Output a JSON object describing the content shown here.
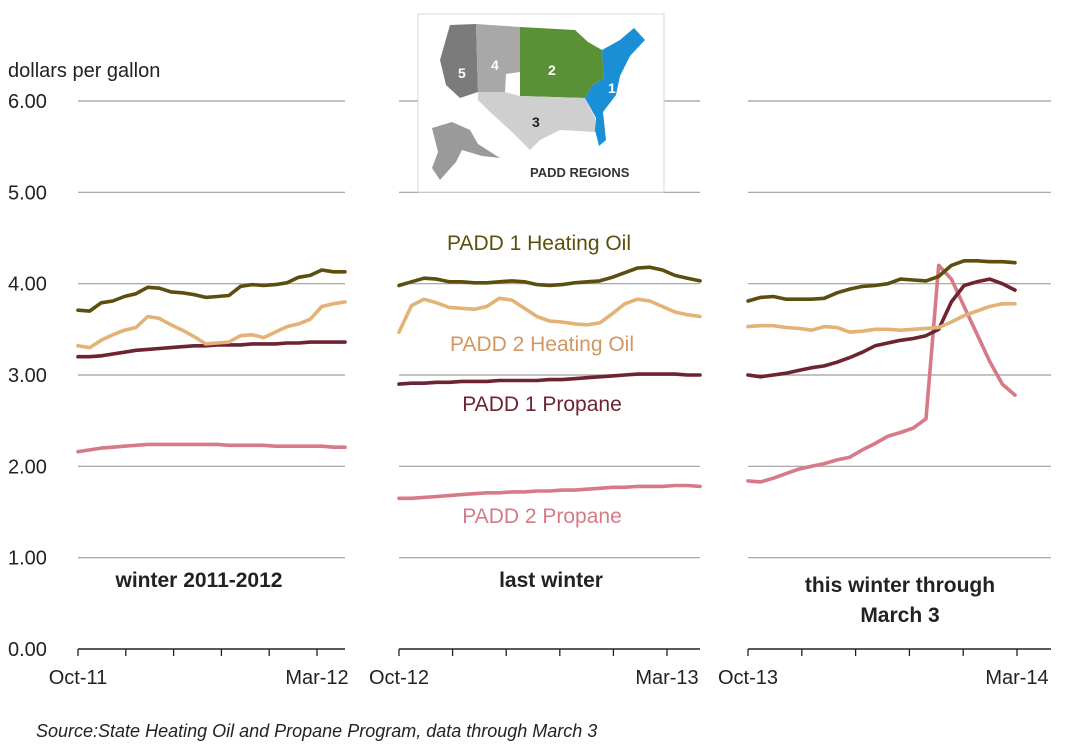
{
  "chart_data": {
    "type": "line",
    "y_unit": "dollars per gallon",
    "ylim": [
      0,
      6
    ],
    "y_ticks": [
      "0.00",
      "1.00",
      "2.00",
      "3.00",
      "4.00",
      "5.00",
      "6.00"
    ],
    "grid": true,
    "source": "Source:State Heating Oil and Propane Program, data through March 3",
    "series_labels": [
      {
        "key": "padd1_oil",
        "name": "PADD 1 Heating Oil",
        "color": "#5c4f0e"
      },
      {
        "key": "padd2_oil",
        "name": "PADD 2 Heating Oil",
        "color": "#e3b277"
      },
      {
        "key": "padd1_propane",
        "name": "PADD 1 Propane",
        "color": "#6e2332"
      },
      {
        "key": "padd2_propane",
        "name": "PADD 2 Propane",
        "color": "#d77a87"
      }
    ],
    "panels": [
      {
        "label": "winter 2011-2012",
        "x_ticks": [
          "Oct-11",
          "Mar-12"
        ],
        "series": {
          "padd1_oil": [
            3.71,
            3.7,
            3.79,
            3.81,
            3.86,
            3.89,
            3.96,
            3.95,
            3.91,
            3.9,
            3.88,
            3.85,
            3.86,
            3.87,
            3.97,
            3.99,
            3.98,
            3.99,
            4.01,
            4.07,
            4.09,
            4.15,
            4.13,
            4.13
          ],
          "padd2_oil": [
            3.32,
            3.3,
            3.38,
            3.44,
            3.49,
            3.52,
            3.64,
            3.62,
            3.55,
            3.49,
            3.42,
            3.34,
            3.35,
            3.36,
            3.43,
            3.44,
            3.41,
            3.47,
            3.53,
            3.56,
            3.61,
            3.75,
            3.78,
            3.8
          ],
          "padd1_propane": [
            3.2,
            3.2,
            3.21,
            3.23,
            3.25,
            3.27,
            3.28,
            3.29,
            3.3,
            3.31,
            3.32,
            3.32,
            3.33,
            3.33,
            3.33,
            3.34,
            3.34,
            3.34,
            3.35,
            3.35,
            3.36,
            3.36,
            3.36,
            3.36
          ],
          "padd2_propane": [
            2.16,
            2.18,
            2.2,
            2.21,
            2.22,
            2.23,
            2.24,
            2.24,
            2.24,
            2.24,
            2.24,
            2.24,
            2.24,
            2.23,
            2.23,
            2.23,
            2.23,
            2.22,
            2.22,
            2.22,
            2.22,
            2.22,
            2.21,
            2.21
          ]
        }
      },
      {
        "label": "last winter",
        "x_ticks": [
          "Oct-12",
          "Mar-13"
        ],
        "series": {
          "padd1_oil": [
            3.98,
            4.02,
            4.06,
            4.05,
            4.02,
            4.02,
            4.01,
            4.01,
            4.02,
            4.03,
            4.02,
            3.99,
            3.98,
            3.99,
            4.01,
            4.02,
            4.03,
            4.07,
            4.12,
            4.17,
            4.18,
            4.15,
            4.09,
            4.06,
            4.03
          ],
          "padd2_oil": [
            3.47,
            3.76,
            3.83,
            3.79,
            3.74,
            3.73,
            3.72,
            3.75,
            3.84,
            3.82,
            3.73,
            3.64,
            3.59,
            3.58,
            3.56,
            3.55,
            3.57,
            3.67,
            3.78,
            3.83,
            3.81,
            3.75,
            3.69,
            3.66,
            3.64
          ],
          "padd1_propane": [
            2.9,
            2.91,
            2.91,
            2.92,
            2.92,
            2.93,
            2.93,
            2.93,
            2.94,
            2.94,
            2.94,
            2.94,
            2.95,
            2.95,
            2.96,
            2.97,
            2.98,
            2.99,
            3.0,
            3.01,
            3.01,
            3.01,
            3.01,
            3.0,
            3.0
          ],
          "padd2_propane": [
            1.65,
            1.65,
            1.66,
            1.67,
            1.68,
            1.69,
            1.7,
            1.71,
            1.71,
            1.72,
            1.72,
            1.73,
            1.73,
            1.74,
            1.74,
            1.75,
            1.76,
            1.77,
            1.77,
            1.78,
            1.78,
            1.78,
            1.79,
            1.79,
            1.78
          ]
        }
      },
      {
        "label": "this winter through March 3",
        "x_ticks": [
          "Oct-13",
          "Mar-14"
        ],
        "series": {
          "padd1_oil": [
            3.81,
            3.85,
            3.86,
            3.83,
            3.83,
            3.83,
            3.84,
            3.9,
            3.94,
            3.97,
            3.98,
            4.0,
            4.05,
            4.04,
            4.03,
            4.08,
            4.2,
            4.25,
            4.25,
            4.24,
            4.24,
            4.23
          ],
          "padd2_oil": [
            3.53,
            3.54,
            3.54,
            3.52,
            3.51,
            3.49,
            3.53,
            3.52,
            3.47,
            3.48,
            3.5,
            3.5,
            3.49,
            3.5,
            3.51,
            3.52,
            3.58,
            3.65,
            3.7,
            3.75,
            3.78,
            3.78
          ],
          "padd1_propane": [
            3.0,
            2.98,
            3.0,
            3.02,
            3.05,
            3.08,
            3.1,
            3.14,
            3.19,
            3.25,
            3.32,
            3.35,
            3.38,
            3.4,
            3.43,
            3.5,
            3.8,
            3.98,
            4.02,
            4.05,
            4.0,
            3.93
          ],
          "padd2_propane": [
            1.84,
            1.83,
            1.87,
            1.92,
            1.97,
            2.0,
            2.03,
            2.07,
            2.1,
            2.18,
            2.25,
            2.33,
            2.37,
            2.42,
            2.52,
            4.2,
            4.05,
            3.75,
            3.45,
            3.15,
            2.9,
            2.78
          ]
        }
      }
    ]
  },
  "inset_map": {
    "caption": "PADD REGIONS",
    "regions": [
      "1",
      "2",
      "3",
      "4",
      "5"
    ]
  }
}
